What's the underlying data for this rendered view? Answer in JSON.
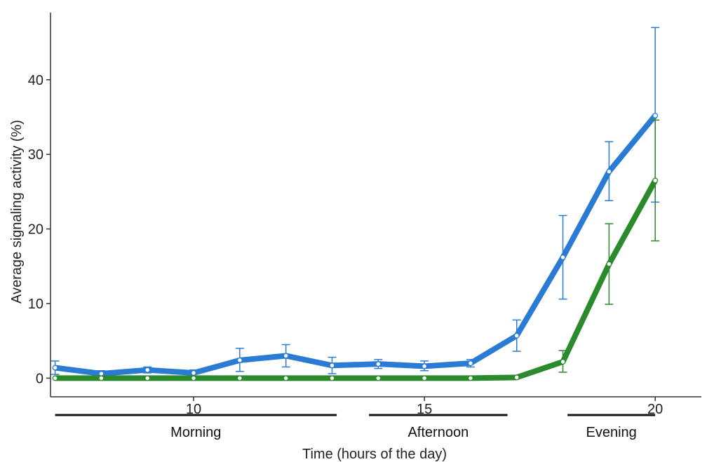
{
  "chart_data": {
    "type": "line",
    "xlabel": "Time (hours of the day)",
    "ylabel": "Average signaling activity (%)",
    "xlim": [
      6.9,
      21.0
    ],
    "ylim": [
      -2.5,
      49
    ],
    "x_ticks": [
      10,
      15,
      20
    ],
    "y_ticks": [
      0,
      10,
      20,
      30,
      40
    ],
    "x_tick_labels": [
      "10",
      "15",
      "20"
    ],
    "y_tick_labels": [
      "0",
      "10",
      "20",
      "30",
      "40"
    ],
    "grid": false,
    "legend": "none",
    "periods": [
      {
        "label": "Morning",
        "start": 7.0,
        "end": 13.1
      },
      {
        "label": "Afternoon",
        "start": 13.8,
        "end": 16.8
      },
      {
        "label": "Evening",
        "start": 18.1,
        "end": 20.0
      }
    ],
    "x": [
      7,
      8,
      9,
      10,
      11,
      12,
      13,
      14,
      15,
      16,
      17,
      18,
      19,
      20
    ],
    "series": [
      {
        "color": "#2a7bd4",
        "values": [
          1.4,
          0.6,
          1.1,
          0.7,
          2.4,
          3.0,
          1.7,
          1.9,
          1.6,
          2.0,
          5.7,
          16.2,
          27.7,
          35.2
        ],
        "err_lo": [
          0.5,
          0.2,
          0.7,
          0.3,
          0.9,
          1.5,
          0.6,
          1.3,
          1.0,
          1.5,
          3.6,
          10.6,
          23.8,
          23.6
        ],
        "err_hi": [
          2.3,
          1.0,
          1.5,
          1.1,
          4.0,
          4.5,
          2.8,
          2.5,
          2.3,
          2.5,
          7.8,
          21.8,
          31.7,
          47.0
        ]
      },
      {
        "color": "#2b8a2b",
        "values": [
          0.0,
          0.0,
          0.0,
          0.0,
          0.0,
          0.0,
          0.0,
          0.0,
          0.0,
          0.0,
          0.1,
          2.2,
          15.3,
          26.5
        ],
        "err_lo": [
          0.0,
          0.0,
          0.0,
          0.0,
          0.0,
          0.0,
          0.0,
          0.0,
          0.0,
          0.0,
          0.1,
          0.8,
          9.9,
          18.4
        ],
        "err_hi": [
          0.0,
          0.0,
          0.0,
          0.0,
          0.0,
          0.0,
          0.0,
          0.0,
          0.0,
          0.0,
          0.1,
          3.7,
          20.7,
          34.6
        ]
      }
    ]
  }
}
